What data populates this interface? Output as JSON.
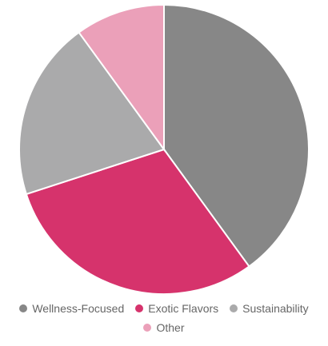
{
  "chart_data": {
    "type": "pie",
    "title": "",
    "series": [
      {
        "name": "Wellness-Focused",
        "value": 40,
        "color": "#878787"
      },
      {
        "name": "Exotic Flavors",
        "value": 30,
        "color": "#d6336c"
      },
      {
        "name": "Sustainability",
        "value": 20,
        "color": "#aaaaab"
      },
      {
        "name": "Other",
        "value": 10,
        "color": "#eba0b9"
      }
    ],
    "legend": {
      "position": "bottom",
      "rows": [
        [
          "Wellness-Focused",
          "Exotic Flavors",
          "Sustainability"
        ],
        [
          "Other"
        ]
      ]
    }
  }
}
